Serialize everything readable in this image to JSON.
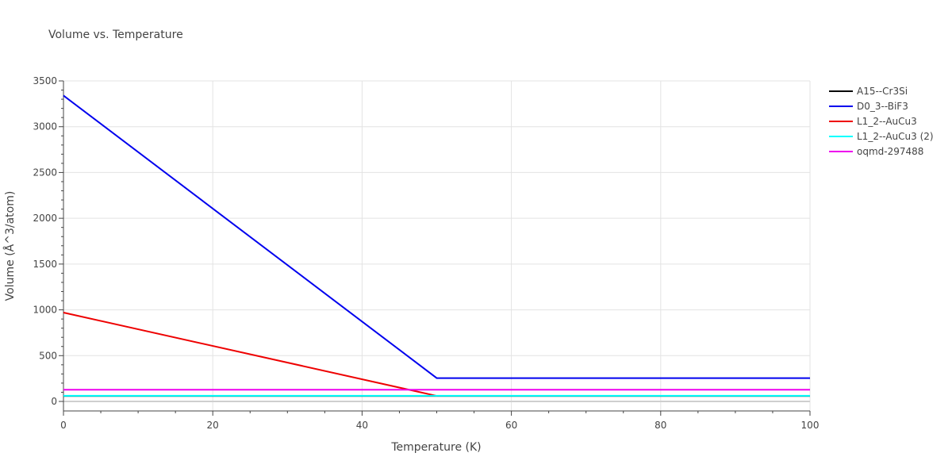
{
  "chart_data": {
    "type": "line",
    "title": "Volume vs. Temperature",
    "xlabel": "Temperature (K)",
    "ylabel": "Volume (Å^3/atom)",
    "xlim": [
      0,
      100
    ],
    "ylim": [
      -100,
      3500
    ],
    "xticks": [
      0,
      20,
      40,
      60,
      80,
      100
    ],
    "yticks": [
      0,
      500,
      1000,
      1500,
      2000,
      2500,
      3000,
      3500
    ],
    "grid": true,
    "legend_position": "top-right",
    "series": [
      {
        "name": "A15--Cr3Si",
        "color": "#000000",
        "x": [
          0,
          100
        ],
        "y": [
          60,
          60
        ]
      },
      {
        "name": "D0_3--BiF3",
        "color": "#0000ee",
        "x": [
          0,
          50,
          100
        ],
        "y": [
          3340,
          255,
          255
        ]
      },
      {
        "name": "L1_2--AuCu3",
        "color": "#ee0000",
        "x": [
          0,
          50
        ],
        "y": [
          970,
          60
        ]
      },
      {
        "name": "L1_2--AuCu3 (2)",
        "color": "#00ffff",
        "x": [
          0,
          100
        ],
        "y": [
          62,
          62
        ]
      },
      {
        "name": "oqmd-297488",
        "color": "#ee00ee",
        "x": [
          0,
          100
        ],
        "y": [
          128,
          128
        ]
      }
    ]
  }
}
